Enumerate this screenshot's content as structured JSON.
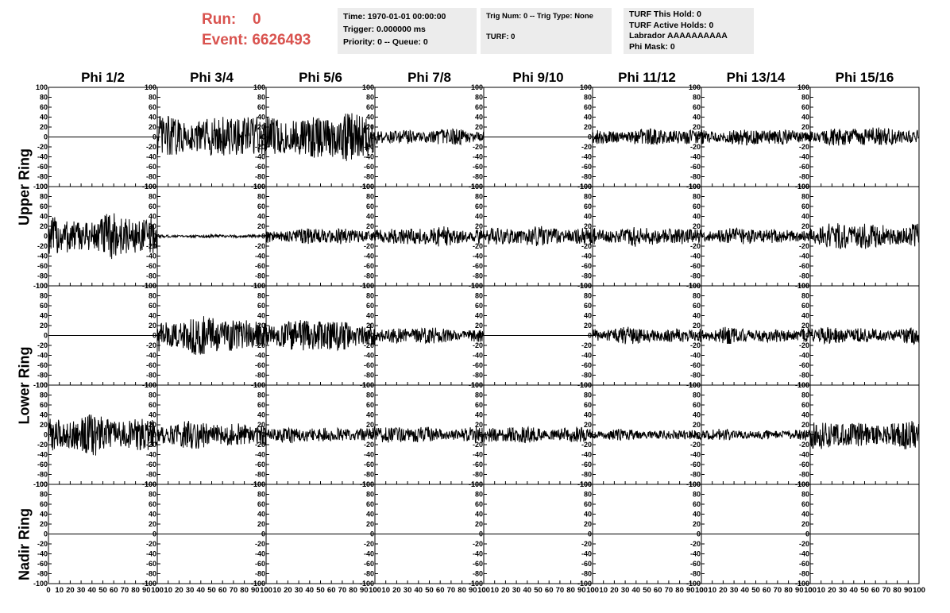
{
  "header": {
    "run_label": "Run:",
    "run_value": "0",
    "event_label": "Event:",
    "event_value": "6626493"
  },
  "info_box_1": {
    "time": "Time: 1970-01-01 00:00:00",
    "trigger": "Trigger: 0.000000 ms",
    "priority": "Priority: 0 -- Queue: 0"
  },
  "info_box_2": {
    "trig": "Trig Num: 0 -- Trig Type: None",
    "turf": "TURF: 0"
  },
  "info_box_3": {
    "this_hold": "TURF This Hold: 0",
    "active_holds": "TURF Active Holds: 0",
    "labrador": "Labrador AAAAAAAAAA",
    "phi_mask": "Phi Mask: 0"
  },
  "column_headers": [
    "Phi 1/2",
    "Phi 3/4",
    "Phi 5/6",
    "Phi 7/8",
    "Phi 9/10",
    "Phi 11/12",
    "Phi 13/14",
    "Phi 15/16"
  ],
  "row_labels": {
    "upper": "Upper Ring",
    "lower": "Lower Ring",
    "nadir": "Nadir Ring"
  },
  "colors": {
    "header_red": "#d9534f",
    "info_box_bg": "#ececec",
    "trace": "#000000"
  },
  "chart_data": {
    "type": "line",
    "panel_rows": 5,
    "panel_columns": 8,
    "xlim": [
      0,
      100
    ],
    "ylim": [
      -100,
      100
    ],
    "x_ticks": [
      0,
      10,
      20,
      30,
      40,
      50,
      60,
      70,
      80,
      90,
      100
    ],
    "y_ticks": [
      -100,
      -80,
      -60,
      -40,
      -20,
      0,
      20,
      40,
      60,
      80,
      100
    ],
    "x_tick_labels": [
      "0",
      "10",
      "20",
      "30",
      "40",
      "50",
      "60",
      "70",
      "80",
      "90",
      "100"
    ],
    "y_tick_labels": [
      "-100",
      "-80",
      "-60",
      "-40",
      "-20",
      "0",
      "20",
      "40",
      "60",
      "80",
      "100"
    ],
    "panel_amplitudes": [
      [
        0,
        40,
        45,
        15,
        0,
        15,
        15,
        18
      ],
      [
        40,
        3,
        15,
        18,
        18,
        18,
        15,
        25
      ],
      [
        0,
        35,
        30,
        15,
        0,
        15,
        15,
        15
      ],
      [
        35,
        25,
        15,
        15,
        15,
        10,
        10,
        25
      ],
      [
        0,
        0,
        0,
        0,
        0,
        0,
        0,
        0
      ]
    ]
  }
}
